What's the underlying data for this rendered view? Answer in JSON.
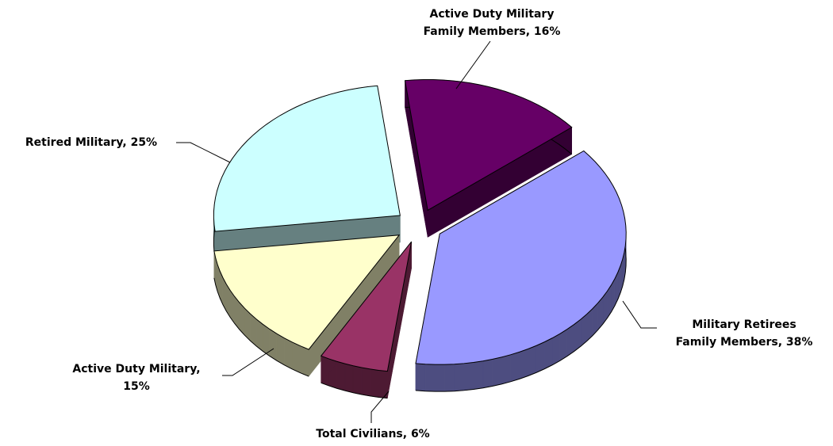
{
  "chart_data": {
    "type": "pie3d",
    "labels": [
      [
        "Active Duty Military",
        "Family Members, 16%"
      ],
      [
        "Military Retirees",
        "Family Members, 38%"
      ],
      [
        "Total Civilians, 6%"
      ],
      [
        "Active Duty Military,",
        "15%"
      ],
      [
        "Retired Military, 25%"
      ]
    ],
    "values": [
      16,
      38,
      6,
      15,
      25
    ],
    "colors": [
      "#660066",
      "#9999ff",
      "#993366",
      "#ffffcc",
      "#ccffff"
    ]
  }
}
